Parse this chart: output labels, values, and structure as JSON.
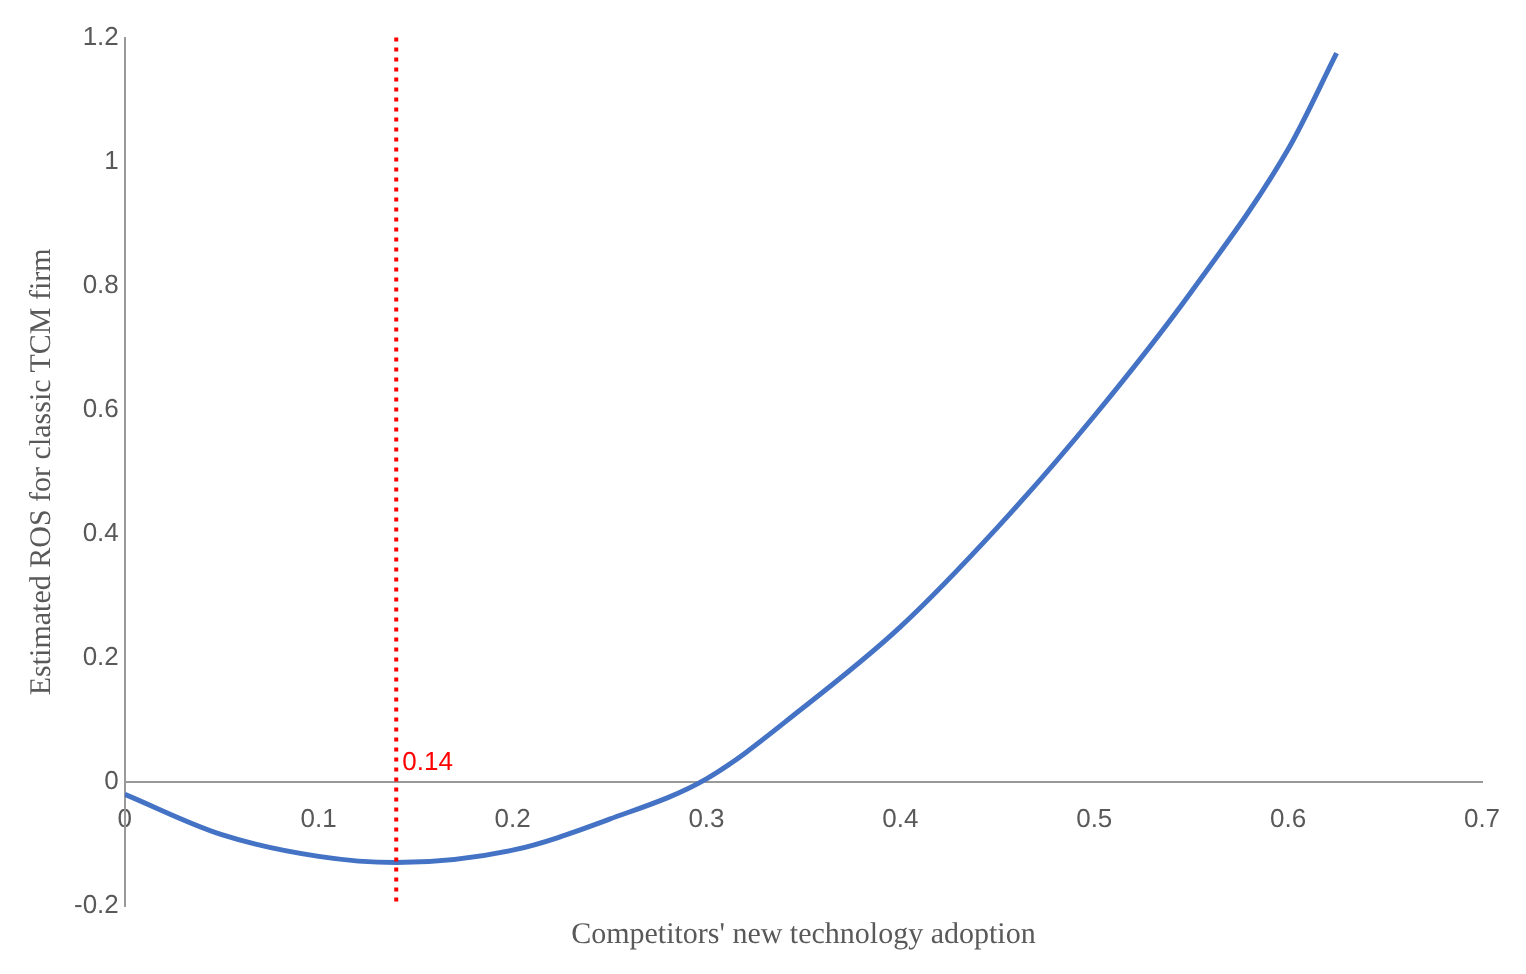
{
  "chart_data": {
    "type": "line",
    "xlabel": "Competitors' new technology adoption",
    "ylabel": "Estimated ROS for classic TCM firm",
    "series": [
      {
        "color": "#4472c4",
        "x": [
          0,
          0.05,
          0.1,
          0.14,
          0.2,
          0.25,
          0.3,
          0.35,
          0.4,
          0.45,
          0.5,
          0.55,
          0.6,
          0.625
        ],
        "values": [
          -0.02,
          -0.085,
          -0.12,
          -0.13,
          -0.11,
          -0.06,
          0.005,
          0.12,
          0.25,
          0.41,
          0.59,
          0.79,
          1.02,
          1.175
        ]
      }
    ],
    "xlim": [
      0,
      0.7
    ],
    "xticks": [
      0,
      0.1,
      0.2,
      0.3,
      0.4,
      0.5,
      0.6,
      0.7
    ],
    "ylim": [
      -0.2,
      1.2
    ],
    "yticks": [
      -0.2,
      0,
      0.2,
      0.4,
      0.6,
      0.8,
      1,
      1.2
    ],
    "ref_lines": [
      {
        "axis": "x",
        "value": 0.14,
        "label": "0.14",
        "color": "#ff0000",
        "line_style": "dotted"
      }
    ],
    "grid": false,
    "legend": false,
    "marker": "none",
    "line_style": "solid"
  }
}
